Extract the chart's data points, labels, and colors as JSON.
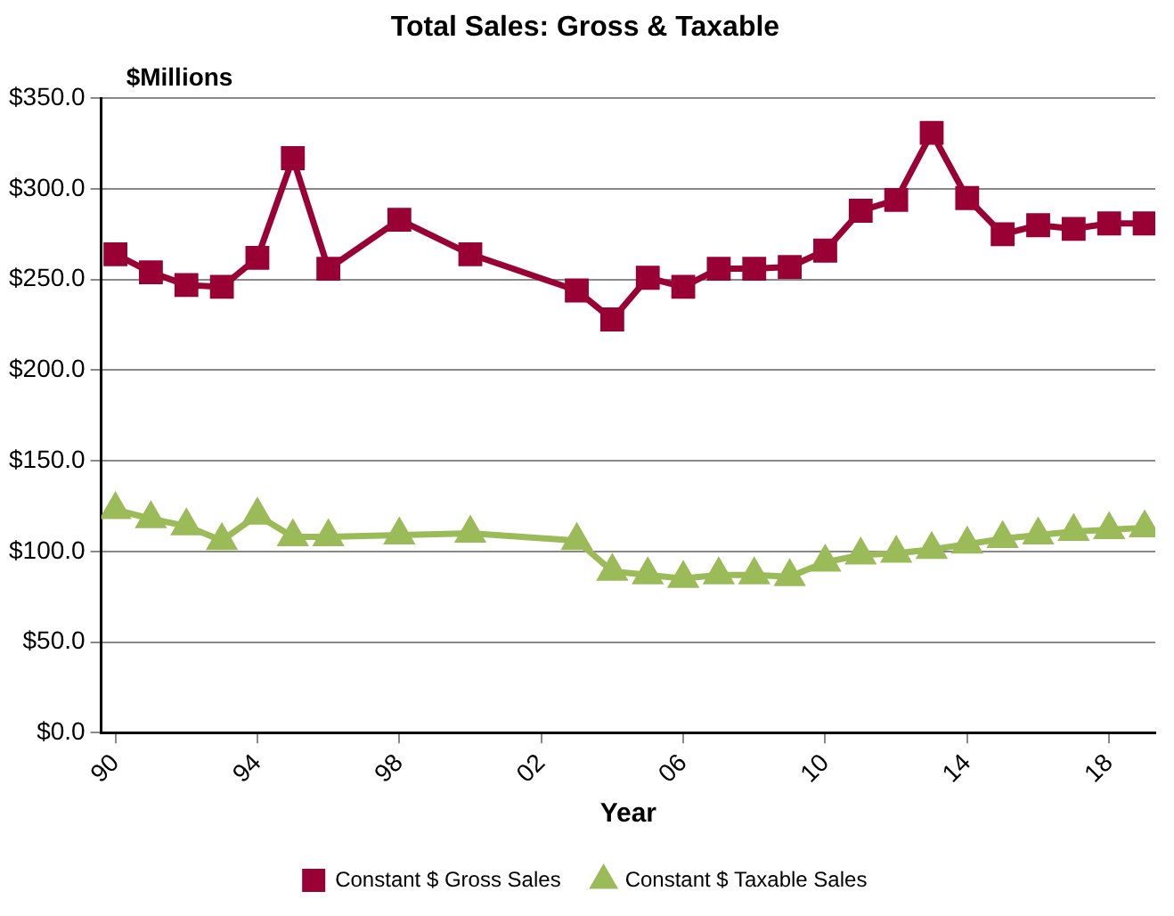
{
  "chart_data": {
    "type": "line",
    "title": "Total Sales: Gross & Taxable",
    "ylabel": "$Millions",
    "xlabel": "Year",
    "x": [
      1990,
      1991,
      1992,
      1993,
      1994,
      1995,
      1996,
      1998,
      2000,
      2003,
      2004,
      2005,
      2006,
      2007,
      2008,
      2009,
      2010,
      2011,
      2012,
      2013,
      2014,
      2015,
      2016,
      2017,
      2018,
      2019
    ],
    "series": [
      {
        "name": "Constant $ Gross Sales",
        "color": "#990033",
        "marker": "square",
        "values": [
          264,
          254,
          247,
          246,
          262,
          317,
          256,
          283,
          264,
          244,
          228,
          251,
          246,
          256,
          256,
          257,
          266,
          288,
          294,
          331,
          295,
          275,
          280,
          278,
          281,
          281
        ]
      },
      {
        "name": "Constant $ Taxable Sales",
        "color": "#9bbb59",
        "marker": "triangle",
        "values": [
          123,
          118,
          114,
          106,
          120,
          108,
          108,
          109,
          110,
          106,
          89,
          87,
          85,
          87,
          87,
          86,
          94,
          98,
          99,
          101,
          104,
          107,
          109,
          111,
          112,
          113
        ]
      }
    ],
    "xlim": [
      1989.6,
      2019.3
    ],
    "xticks": [
      {
        "value": 1990,
        "label": "90"
      },
      {
        "value": 1994,
        "label": "94"
      },
      {
        "value": 1998,
        "label": "98"
      },
      {
        "value": 2002,
        "label": "02"
      },
      {
        "value": 2006,
        "label": "06"
      },
      {
        "value": 2010,
        "label": "10"
      },
      {
        "value": 2014,
        "label": "14"
      },
      {
        "value": 2018,
        "label": "18"
      }
    ],
    "ylim": [
      0,
      350
    ],
    "yticks": [
      {
        "value": 0,
        "label": "$0.0"
      },
      {
        "value": 50,
        "label": "$50.0"
      },
      {
        "value": 100,
        "label": "$100.0"
      },
      {
        "value": 150,
        "label": "$150.0"
      },
      {
        "value": 200,
        "label": "$200.0"
      },
      {
        "value": 250,
        "label": "$250.0"
      },
      {
        "value": 300,
        "label": "$300.0"
      },
      {
        "value": 350,
        "label": "$350.0"
      }
    ],
    "grid": "y",
    "legend": "bottom"
  }
}
